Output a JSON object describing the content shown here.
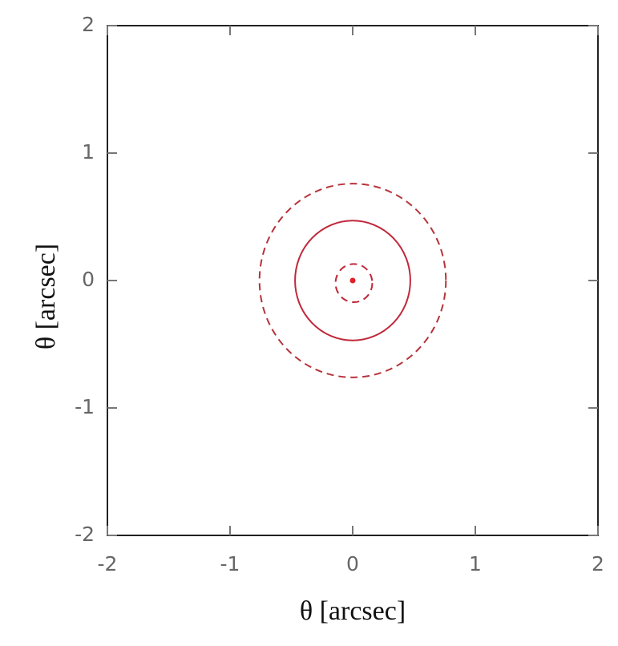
{
  "chart_data": {
    "type": "contour",
    "xlabel": "θ  [arcsec]",
    "ylabel": "θ  [arcsec]",
    "xlim": [
      -2,
      2
    ],
    "ylim": [
      -2,
      2
    ],
    "xticks": [
      -2,
      -1,
      0,
      1,
      2
    ],
    "yticks": [
      -2,
      -1,
      0,
      1,
      2
    ],
    "contours": [
      {
        "x": 0,
        "y": 0,
        "r": 0.76,
        "dashed": true,
        "color": "#b5333a"
      },
      {
        "x": 0,
        "y": 0,
        "r": 0.47,
        "dashed": false,
        "color": "#c0283a"
      },
      {
        "x": 0.01,
        "y": -0.02,
        "r": 0.15,
        "dashed": true,
        "color": "#c0283a"
      }
    ],
    "point": {
      "x": 0,
      "y": 0,
      "color": "#e0202a"
    }
  }
}
